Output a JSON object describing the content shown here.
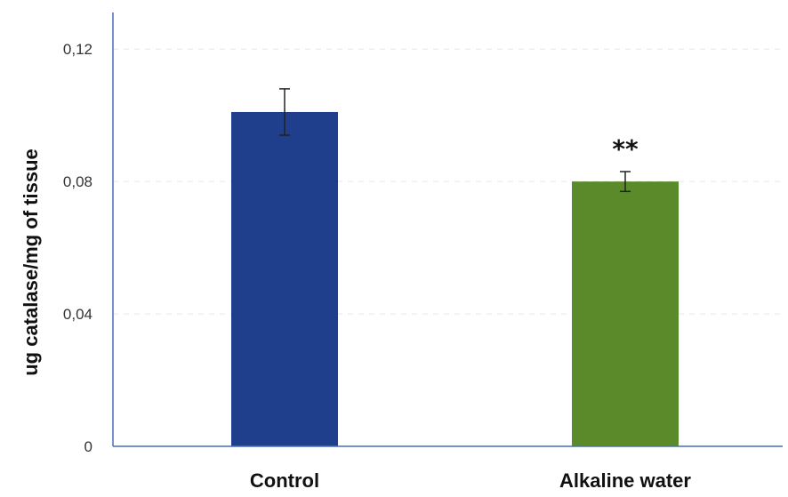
{
  "chart_data": {
    "type": "bar",
    "categories": [
      "Control",
      "Alkaline water"
    ],
    "values": [
      0.101,
      0.08
    ],
    "errors": [
      0.007,
      0.003
    ],
    "ylabel": "ug catalase/mg of tissue",
    "xlabel": "",
    "ylim": [
      0,
      0.13
    ],
    "yticks": [
      0,
      0.04,
      0.08,
      0.12
    ],
    "ytick_labels": [
      "0",
      "0,04",
      "0,08",
      "0,12"
    ],
    "annotations": [
      {
        "category": "Alkaline water",
        "text": "**"
      }
    ],
    "grid": true,
    "colors": {
      "bars": [
        "#1f3f8c",
        "#5b8a2b"
      ],
      "axis": "#4a6fb5",
      "grid": "#e6e6e6"
    }
  }
}
